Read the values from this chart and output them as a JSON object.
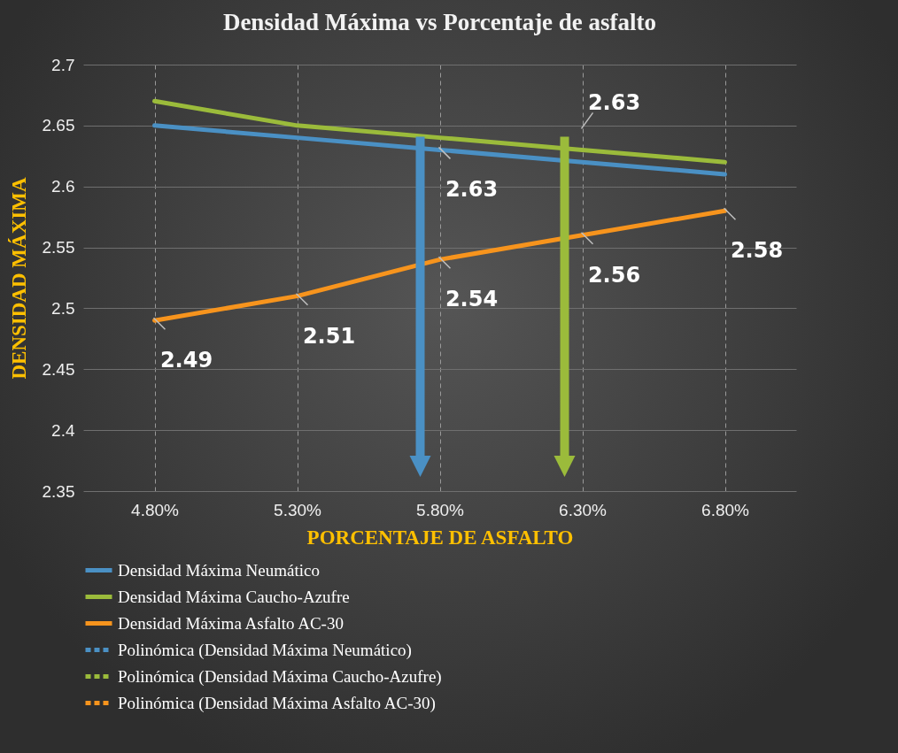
{
  "chart_data": {
    "type": "line",
    "title": "Densidad Máxima vs Porcentaje de asfalto",
    "xlabel": "PORCENTAJE DE ASFALTO",
    "ylabel": "DENSIDAD MÁXIMA",
    "categories": [
      "4.80%",
      "5.30%",
      "5.80%",
      "6.30%",
      "6.80%"
    ],
    "series": [
      {
        "name": "Densidad Máxima Neumático",
        "color": "#4a90c4",
        "values": [
          2.65,
          2.64,
          2.63,
          2.62,
          2.61
        ],
        "value_labels": [
          null,
          null,
          "2.63",
          null,
          null
        ]
      },
      {
        "name": "Densidad Máxima Caucho-Azufre",
        "color": "#9bbb3b",
        "values": [
          2.67,
          2.65,
          2.64,
          2.63,
          2.62
        ],
        "value_labels": [
          null,
          null,
          null,
          "2.63",
          null
        ]
      },
      {
        "name": "Densidad Máxima Asfalto AC-30",
        "color": "#f7941d",
        "values": [
          2.49,
          2.51,
          2.54,
          2.56,
          2.58
        ],
        "value_labels": [
          "2.49",
          "2.51",
          "2.54",
          "2.56",
          "2.58"
        ]
      },
      {
        "name": "Polinómica (Densidad Máxima Neumático)",
        "color": "#4a90c4",
        "line_style": "dashed",
        "values": [
          null,
          null,
          null,
          null,
          null
        ]
      },
      {
        "name": "Polinómica (Densidad Máxima Caucho-Azufre)",
        "color": "#9bbb3b",
        "line_style": "dashed",
        "values": [
          null,
          null,
          null,
          null,
          null
        ]
      },
      {
        "name": "Polinómica (Densidad Máxima Asfalto AC-30)",
        "color": "#f7941d",
        "line_style": "dashed",
        "values": [
          null,
          null,
          null,
          null,
          null
        ]
      }
    ],
    "ylim": [
      2.35,
      2.7
    ],
    "yticks": [
      2.35,
      {
        "value": 2.4,
        "label": "2.4"
      },
      2.45,
      {
        "value": 2.5,
        "label": "2.5"
      },
      2.55,
      {
        "value": 2.6,
        "label": "2.6"
      },
      2.65,
      {
        "value": 2.7,
        "label": "2.7"
      }
    ],
    "grid": true,
    "legend": "bottom",
    "line_style": "solid",
    "marker": "none"
  }
}
